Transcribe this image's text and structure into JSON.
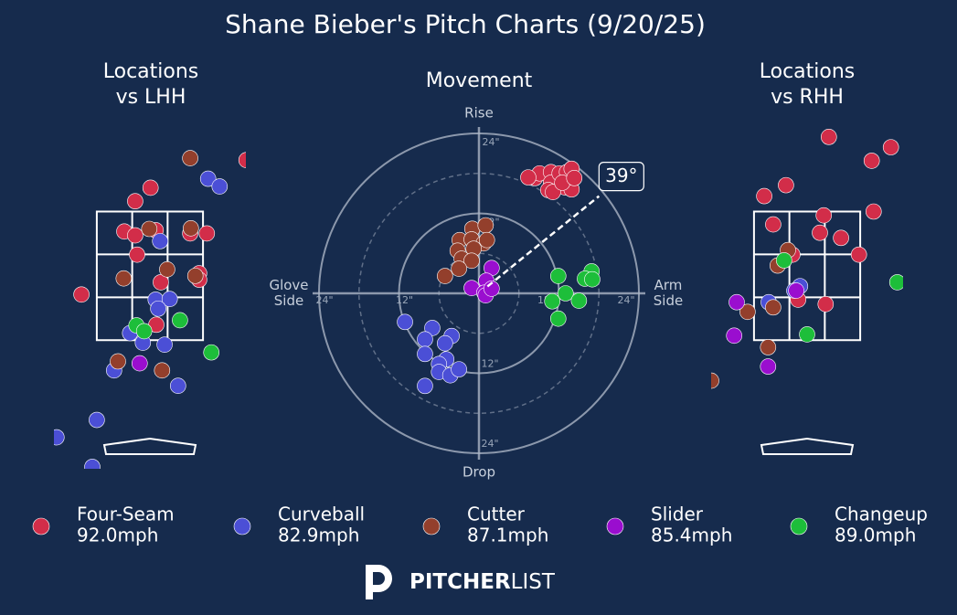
{
  "title": "Shane Bieber's Pitch Charts (9/20/25)",
  "pitches": [
    {
      "name": "Four-Seam",
      "color": "#d22d49",
      "speed_label": "92.0mph"
    },
    {
      "name": "Curveball",
      "color": "#4b4fd6",
      "speed_label": "82.9mph"
    },
    {
      "name": "Cutter",
      "color": "#933f2c",
      "speed_label": "87.1mph"
    },
    {
      "name": "Slider",
      "color": "#9a0ecf",
      "speed_label": "85.4mph"
    },
    {
      "name": "Changeup",
      "color": "#1dbe3a",
      "speed_label": "89.0mph"
    }
  ],
  "chart_data": [
    {
      "type": "location",
      "title": [
        "Locations",
        "vs LHH"
      ],
      "xlim": [
        -1.5,
        1.5
      ],
      "ylim": [
        -0.5,
        4.8
      ],
      "series": [
        {
          "x": [
            -0.23,
            0.01,
            -0.4,
            -0.23,
            -0.2,
            0.09,
            0.63,
            0.89,
            0.17,
            0.77,
            0.77,
            -1.07,
            0.1,
            1.51
          ],
          "y": [
            3.66,
            3.87,
            3.19,
            3.13,
            2.83,
            3.21,
            3.16,
            3.16,
            2.4,
            2.54,
            2.44,
            2.21,
            1.74,
            4.3
          ]
        },
        {
          "x": [
            0.91,
            1.09,
            0.16,
            0.09,
            0.31,
            0.13,
            -0.31,
            -0.11,
            0.23,
            -0.56,
            0.44,
            -0.83,
            -1.46,
            -0.9
          ],
          "y": [
            4.01,
            3.89,
            3.04,
            2.13,
            2.14,
            1.99,
            1.61,
            1.46,
            1.43,
            1.03,
            0.79,
            0.26,
            -0.01,
            -0.47
          ]
        },
        {
          "x": [
            0.63,
            -0.01,
            0.64,
            0.27,
            -0.41,
            0.71,
            -0.5,
            0.19
          ],
          "y": [
            4.33,
            3.23,
            3.24,
            2.6,
            2.46,
            2.5,
            1.17,
            1.03
          ]
        },
        {
          "x": [
            -0.16
          ],
          "y": [
            1.14
          ]
        },
        {
          "x": [
            -0.21,
            -0.09,
            0.47,
            0.96
          ],
          "y": [
            1.73,
            1.64,
            1.81,
            1.31
          ]
        }
      ]
    },
    {
      "type": "movement",
      "title": [
        "Movement"
      ],
      "rlim": [
        0,
        24
      ],
      "rticks": [
        {
          "value": 12,
          "label": "12\""
        },
        {
          "value": 24,
          "label": "24\""
        }
      ],
      "rminor": [
        6,
        18
      ],
      "axis_labels": {
        "top": [
          "Rise"
        ],
        "bottom": [
          "Drop"
        ],
        "left": [
          "Glove",
          "Side"
        ],
        "right": [
          "Arm",
          "Side"
        ]
      },
      "arm_angle": {
        "value": 39,
        "label": "39°"
      },
      "series": [
        {
          "x": [
            8.4,
            9.1,
            10.8,
            10.8,
            10.4,
            12.1,
            13.2,
            13.9,
            12.9,
            13.9,
            11.1,
            12.5,
            14.3,
            7.4
          ],
          "y": [
            17.3,
            18.0,
            18.2,
            16.6,
            15.5,
            18.0,
            18.2,
            18.7,
            15.9,
            15.6,
            15.2,
            16.6,
            17.3,
            17.4
          ]
        },
        {
          "x": [
            -11.1,
            -7.0,
            -4.1,
            -8.1,
            -5.1,
            -8.1,
            -4.9,
            -6.0,
            -6.0,
            -4.3,
            -3.0,
            -8.1
          ],
          "y": [
            -4.3,
            -5.2,
            -6.4,
            -6.9,
            -7.5,
            -9.1,
            -9.9,
            -10.6,
            -11.8,
            -12.3,
            -11.4,
            -13.9
          ]
        },
        {
          "x": [
            -1.0,
            1.0,
            -2.9,
            -1.1,
            0.7,
            -3.2,
            -0.8,
            -2.6,
            -1.1,
            -3.0,
            -5.1,
            1.2
          ],
          "y": [
            9.7,
            10.2,
            8.0,
            8.1,
            7.5,
            6.4,
            6.7,
            5.2,
            4.9,
            3.7,
            2.6,
            8.0
          ]
        },
        {
          "x": [
            1.9,
            1.1,
            -1.1,
            0.8,
            1.0,
            1.9
          ],
          "y": [
            3.8,
            1.9,
            0.8,
            0.1,
            -0.3,
            0.7
          ]
        },
        {
          "x": [
            11.9,
            16.9,
            15.9,
            17.0,
            13.0,
            15.0,
            11.0,
            11.9
          ],
          "y": [
            2.6,
            3.3,
            2.2,
            2.1,
            0.0,
            -1.1,
            -1.2,
            -3.8
          ]
        }
      ]
    },
    {
      "type": "location",
      "title": [
        "Locations",
        "vs RHH"
      ],
      "xlim": [
        -1.5,
        1.5
      ],
      "ylim": [
        -0.5,
        4.8
      ],
      "series": [
        {
          "x": [
            0.34,
            1.31,
            1.01,
            -0.33,
            -0.67,
            1.04,
            0.26,
            -0.53,
            0.2,
            0.53,
            -0.23,
            0.81,
            -0.14,
            0.29
          ],
          "y": [
            4.66,
            4.5,
            4.29,
            3.91,
            3.74,
            3.5,
            3.44,
            3.3,
            3.17,
            3.09,
            2.83,
            2.83,
            2.13,
            2.06
          ]
        },
        {
          "x": [
            -0.11,
            -0.2,
            -0.6
          ],
          "y": [
            2.34,
            2.27,
            2.09
          ]
        },
        {
          "x": [
            -0.3,
            -0.46,
            -0.93,
            -0.53,
            -0.61,
            -1.5
          ],
          "y": [
            2.9,
            2.66,
            1.94,
            2.01,
            1.39,
            0.87
          ]
        },
        {
          "x": [
            -0.17,
            -1.1,
            -1.14,
            -0.61
          ],
          "y": [
            2.27,
            2.09,
            1.57,
            1.09
          ]
        },
        {
          "x": [
            -0.36,
            1.41,
            0.0
          ],
          "y": [
            2.74,
            2.4,
            1.59
          ]
        }
      ]
    }
  ],
  "logo": {
    "bold": "PITCHER",
    "light": "LIST"
  }
}
